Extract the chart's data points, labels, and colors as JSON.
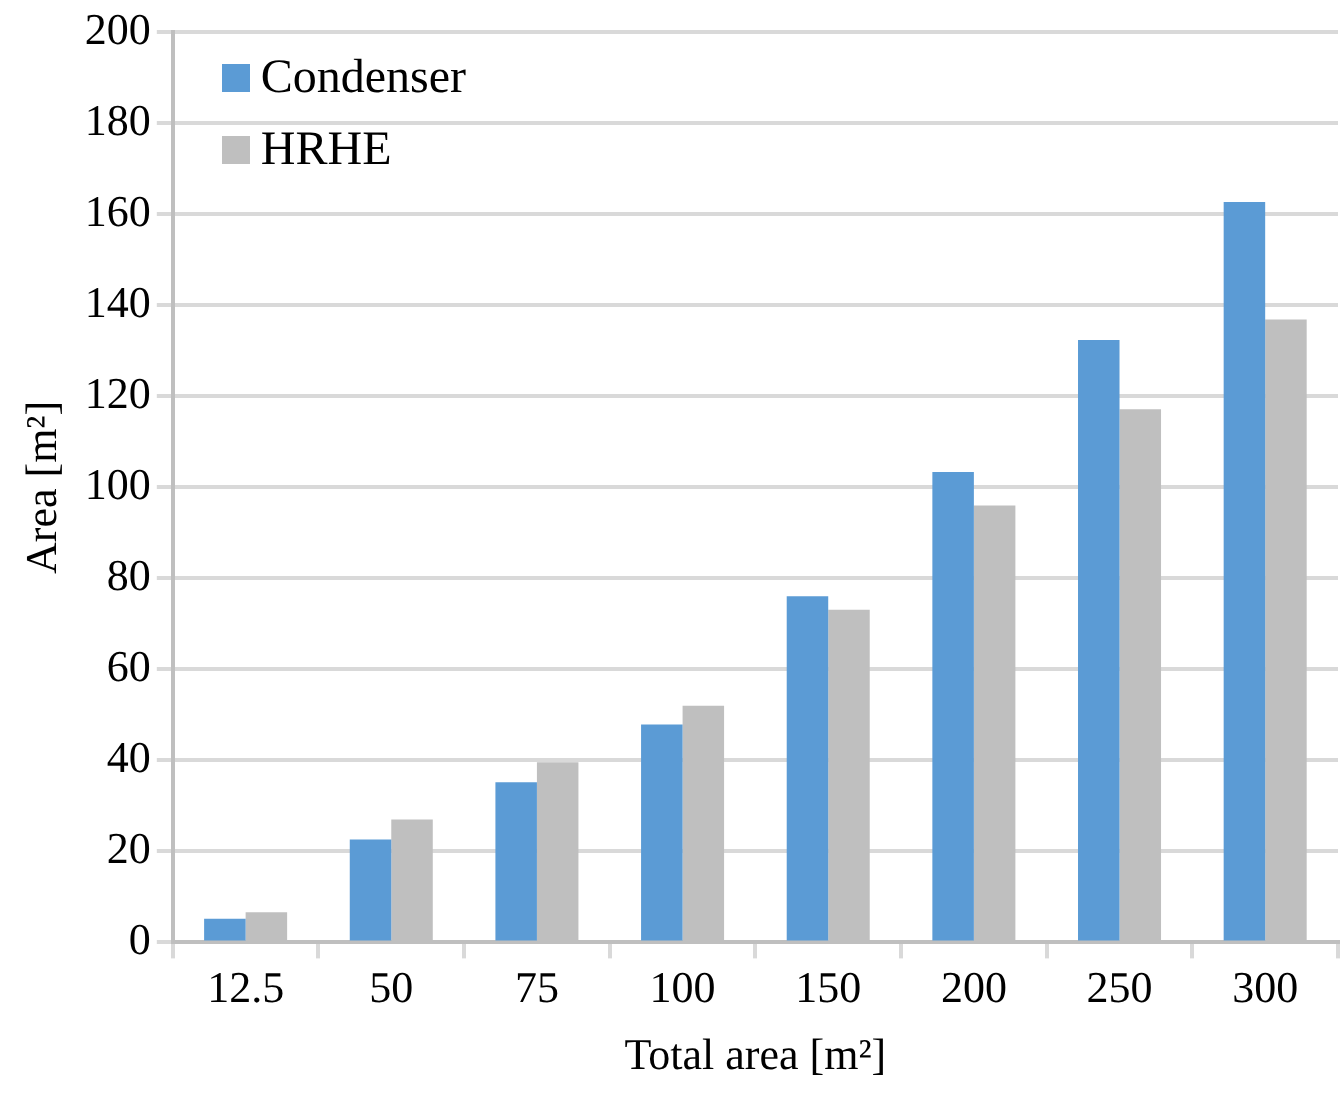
{
  "chart_data": {
    "type": "bar",
    "xlabel": "Total area [m²]",
    "ylabel": "Area [m²]",
    "categories": [
      "12.5",
      "50",
      "75",
      "100",
      "150",
      "200",
      "250",
      "300"
    ],
    "series": [
      {
        "name": "Condenser",
        "color": "#5b9bd5",
        "values": [
          5.2,
          22.6,
          35.2,
          47.9,
          76.1,
          103.4,
          132.4,
          162.7
        ]
      },
      {
        "name": "HRHE",
        "color": "#bfbfbf",
        "values": [
          6.6,
          27.0,
          39.6,
          52.0,
          73.1,
          96.0,
          117.2,
          136.9
        ]
      }
    ],
    "ylim": [
      0,
      200
    ],
    "yticks": [
      0,
      20,
      40,
      60,
      80,
      100,
      120,
      140,
      160,
      180,
      200
    ],
    "grid": "y",
    "legend": "top left"
  }
}
